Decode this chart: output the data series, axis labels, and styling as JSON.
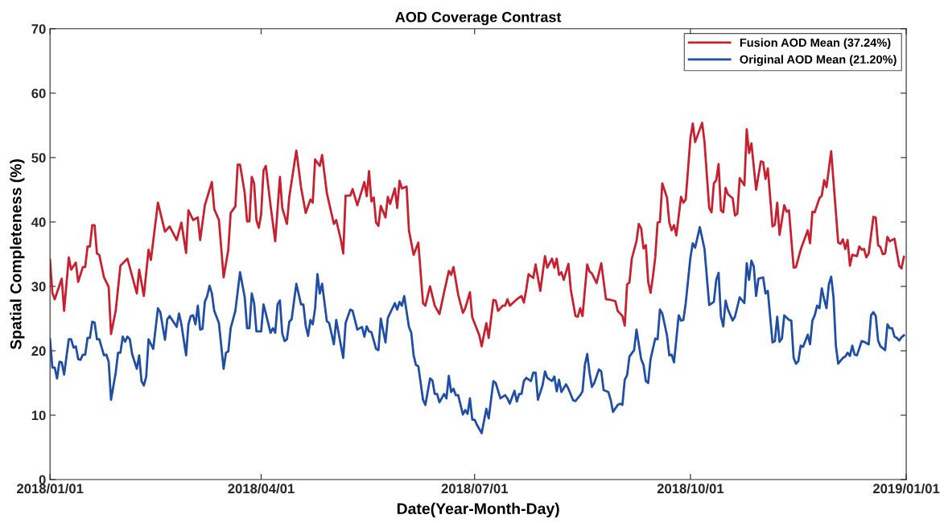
{
  "chart_data": {
    "type": "line",
    "title": "AOD Coverage Contrast",
    "xlabel": "Date(Year-Month-Day)",
    "ylabel": "Spatial Completeness (%)",
    "xlim": [
      "2018-01-01",
      "2019-01-01"
    ],
    "xticks": [
      {
        "value": "2018-01-01",
        "label": "2018/01/01"
      },
      {
        "value": "2018-04-01",
        "label": "2018/04/01"
      },
      {
        "value": "2018-07-01",
        "label": "2018/07/01"
      },
      {
        "value": "2018-10-01",
        "label": "2018/10/01"
      },
      {
        "value": "2019-01-01",
        "label": "2019/01/01"
      }
    ],
    "ylim": [
      0,
      70
    ],
    "yticks": [
      0,
      10,
      20,
      30,
      40,
      50,
      60,
      70
    ],
    "grid": false,
    "legend": "top right",
    "marker": "none",
    "line_style": "solid",
    "series": [
      {
        "name": "Fusion AOD Mean (37.24%)",
        "color": "#c8202f",
        "x": [
          "2018-01-01",
          "2018-01-02",
          "2018-01-03",
          "2018-01-06",
          "2018-01-07",
          "2018-01-09",
          "2018-01-10",
          "2018-01-12",
          "2018-01-13",
          "2018-01-15",
          "2018-01-16",
          "2018-01-17",
          "2018-01-18",
          "2018-01-19",
          "2018-01-20",
          "2018-01-21",
          "2018-01-22",
          "2018-01-24",
          "2018-01-26",
          "2018-01-27",
          "2018-01-29",
          "2018-01-31",
          "2018-02-03",
          "2018-02-07",
          "2018-02-08",
          "2018-02-10",
          "2018-02-12",
          "2018-02-13",
          "2018-02-16",
          "2018-02-19",
          "2018-02-21",
          "2018-02-24",
          "2018-02-26",
          "2018-02-28",
          "2018-03-01",
          "2018-03-03",
          "2018-03-05",
          "2018-03-06",
          "2018-03-08",
          "2018-03-11",
          "2018-03-12",
          "2018-03-14",
          "2018-03-16",
          "2018-03-18",
          "2018-03-19",
          "2018-03-21",
          "2018-03-22",
          "2018-03-23",
          "2018-03-25",
          "2018-03-26",
          "2018-03-27",
          "2018-03-28",
          "2018-03-29",
          "2018-03-30",
          "2018-03-31",
          "2018-04-01",
          "2018-04-02",
          "2018-04-03",
          "2018-04-05",
          "2018-04-07",
          "2018-04-09",
          "2018-04-10",
          "2018-04-12",
          "2018-04-13",
          "2018-04-16",
          "2018-04-18",
          "2018-04-20",
          "2018-04-22",
          "2018-04-23",
          "2018-04-24",
          "2018-04-26",
          "2018-04-27",
          "2018-04-29",
          "2018-05-02",
          "2018-05-03",
          "2018-05-05",
          "2018-05-06",
          "2018-05-07",
          "2018-05-09",
          "2018-05-10",
          "2018-05-12",
          "2018-05-15",
          "2018-05-16",
          "2018-05-17",
          "2018-05-18",
          "2018-05-19",
          "2018-05-20",
          "2018-05-21",
          "2018-05-22",
          "2018-05-24",
          "2018-05-25",
          "2018-05-26",
          "2018-05-28",
          "2018-05-29",
          "2018-05-30",
          "2018-05-31",
          "2018-06-02",
          "2018-06-03",
          "2018-06-05",
          "2018-06-07",
          "2018-06-09",
          "2018-06-10",
          "2018-06-12",
          "2018-06-14",
          "2018-06-16",
          "2018-06-18",
          "2018-06-20",
          "2018-06-21",
          "2018-06-22",
          "2018-06-24",
          "2018-06-26",
          "2018-06-27",
          "2018-06-29",
          "2018-06-30",
          "2018-07-03",
          "2018-07-04",
          "2018-07-06",
          "2018-07-07",
          "2018-07-09",
          "2018-07-10",
          "2018-07-11",
          "2018-07-13",
          "2018-07-14",
          "2018-07-15",
          "2018-07-16",
          "2018-07-19",
          "2018-07-21",
          "2018-07-22",
          "2018-07-23",
          "2018-07-24",
          "2018-07-26",
          "2018-07-27",
          "2018-07-29",
          "2018-07-31",
          "2018-08-01",
          "2018-08-03",
          "2018-08-04",
          "2018-08-05",
          "2018-08-06",
          "2018-08-07",
          "2018-08-08",
          "2018-08-10",
          "2018-08-11",
          "2018-08-13",
          "2018-08-14",
          "2018-08-15",
          "2018-08-16",
          "2018-08-18",
          "2018-08-19",
          "2018-08-20",
          "2018-08-22",
          "2018-08-24",
          "2018-08-26",
          "2018-08-28",
          "2018-08-30",
          "2018-08-31",
          "2018-09-02",
          "2018-09-03",
          "2018-09-04",
          "2018-09-05",
          "2018-09-06",
          "2018-09-08",
          "2018-09-09",
          "2018-09-10",
          "2018-09-11",
          "2018-09-12",
          "2018-09-13",
          "2018-09-14",
          "2018-09-15",
          "2018-09-16",
          "2018-09-17",
          "2018-09-18",
          "2018-09-19",
          "2018-09-21",
          "2018-09-22",
          "2018-09-23",
          "2018-09-24",
          "2018-09-25",
          "2018-09-27",
          "2018-09-28",
          "2018-09-29",
          "2018-10-01",
          "2018-10-02",
          "2018-10-03",
          "2018-10-06",
          "2018-10-07",
          "2018-10-09",
          "2018-10-10",
          "2018-10-11",
          "2018-10-12",
          "2018-10-13",
          "2018-10-14",
          "2018-10-15",
          "2018-10-16",
          "2018-10-17",
          "2018-10-19",
          "2018-10-20",
          "2018-10-21",
          "2018-10-22",
          "2018-10-24",
          "2018-10-25",
          "2018-10-26",
          "2018-10-27",
          "2018-10-29",
          "2018-10-31",
          "2018-11-01",
          "2018-11-02",
          "2018-11-03",
          "2018-11-05",
          "2018-11-06",
          "2018-11-07",
          "2018-11-08",
          "2018-11-10",
          "2018-11-11",
          "2018-11-12",
          "2018-11-14",
          "2018-11-15",
          "2018-11-17",
          "2018-11-20",
          "2018-11-21",
          "2018-11-22",
          "2018-11-23",
          "2018-11-25",
          "2018-11-26",
          "2018-11-27",
          "2018-11-28",
          "2018-11-30",
          "2018-12-03",
          "2018-12-04",
          "2018-12-05",
          "2018-12-06",
          "2018-12-07",
          "2018-12-08",
          "2018-12-09",
          "2018-12-11",
          "2018-12-12",
          "2018-12-13",
          "2018-12-14",
          "2018-12-15",
          "2018-12-16",
          "2018-12-18",
          "2018-12-19",
          "2018-12-20",
          "2018-12-21",
          "2018-12-22",
          "2018-12-23",
          "2018-12-24",
          "2018-12-25",
          "2018-12-27",
          "2018-12-29",
          "2018-12-30",
          "2018-12-31"
        ],
        "values": [
          34.1,
          29,
          28,
          31.2,
          26.2,
          34.5,
          32.6,
          33.7,
          30.7,
          33,
          33,
          36.2,
          36.2,
          39.5,
          39.5,
          35.1,
          34.9,
          31.4,
          29.9,
          22.6,
          26.2,
          33.2,
          34.3,
          28.9,
          32.6,
          28.5,
          35.7,
          34.1,
          43,
          38.5,
          39.3,
          37.2,
          39.9,
          35.2,
          41.8,
          40.3,
          40.7,
          37.2,
          42.6,
          46.2,
          42,
          40.3,
          31.4,
          35.7,
          41.4,
          42.4,
          48.9,
          48.9,
          44.5,
          40.1,
          40.1,
          47,
          46,
          40.3,
          39.1,
          41.2,
          48,
          48.7,
          42.6,
          37,
          47,
          42.2,
          39.7,
          43.9,
          51.1,
          45.4,
          41.4,
          43.5,
          43,
          49.7,
          48.7,
          50.4,
          44.5,
          39.7,
          40.3,
          37.2,
          35.1,
          44.1,
          44.1,
          45.1,
          42.6,
          46.2,
          44,
          47.9,
          43.2,
          43.8,
          39.9,
          39.4,
          42.5,
          40.7,
          43.9,
          42.8,
          45.2,
          42.2,
          46.4,
          45.2,
          45.5,
          38.7,
          34.9,
          36.8,
          27.4,
          27,
          30,
          27,
          25.7,
          29.1,
          32.4,
          31.8,
          33,
          28.7,
          25.9,
          26.6,
          29.1,
          25.2,
          22.4,
          20.7,
          24.3,
          22,
          27.9,
          27.8,
          26.2,
          27,
          27,
          28,
          27,
          28,
          28.5,
          27.5,
          29.5,
          31.9,
          31.3,
          33.4,
          29.3,
          34.7,
          32.9,
          34.3,
          32.9,
          34.3,
          31.8,
          32.2,
          31,
          33.5,
          29.5,
          25.4,
          25.3,
          26.6,
          25.4,
          33.4,
          32.3,
          32,
          30.5,
          33.6,
          28,
          27.9,
          27.7,
          26.2,
          25.4,
          23.9,
          30.3,
          30.6,
          34.3,
          37,
          39.7,
          39,
          35.9,
          36.4,
          30.7,
          29,
          31.5,
          34.5,
          39.9,
          40,
          46,
          43.8,
          39.9,
          38.7,
          39.5,
          37.9,
          43.9,
          43,
          43.5,
          53,
          55.3,
          52.4,
          55.4,
          52.4,
          42.2,
          41.5,
          46,
          46.5,
          49,
          41.8,
          41.5,
          45.3,
          44.3,
          43.7,
          41,
          41.3,
          46.8,
          45.7,
          54.4,
          50.7,
          52.2,
          45,
          49.4,
          49.3,
          46.7,
          48.3,
          39.3,
          39.6,
          43,
          38,
          42.6,
          41.6,
          41.8,
          32.9,
          33,
          35.7,
          38.7,
          36.7,
          41.6,
          41.5,
          43.7,
          44.1,
          46.5,
          45.4,
          51,
          36.8,
          36.6,
          37.3,
          35.8,
          37.2,
          33.2,
          34.9,
          34.7,
          36.2,
          35.7,
          35.8,
          34.5,
          35.1,
          40.8,
          40.7,
          36.4,
          36.1,
          35,
          35.1,
          37.7,
          37,
          37.4,
          33.2,
          32.8,
          34.6
        ]
      },
      {
        "name": "Original AOD Mean (21.20%)",
        "color": "#1f4ea6",
        "x": [
          "2018-01-01",
          "2018-01-02",
          "2018-01-03",
          "2018-01-04",
          "2018-01-05",
          "2018-01-06",
          "2018-01-07",
          "2018-01-09",
          "2018-01-10",
          "2018-01-11",
          "2018-01-12",
          "2018-01-13",
          "2018-01-14",
          "2018-01-15",
          "2018-01-16",
          "2018-01-17",
          "2018-01-18",
          "2018-01-19",
          "2018-01-20",
          "2018-01-21",
          "2018-01-22",
          "2018-01-24",
          "2018-01-25",
          "2018-01-26",
          "2018-01-27",
          "2018-01-29",
          "2018-01-30",
          "2018-01-31",
          "2018-02-01",
          "2018-02-02",
          "2018-02-03",
          "2018-02-04",
          "2018-02-05",
          "2018-02-07",
          "2018-02-08",
          "2018-02-09",
          "2018-02-10",
          "2018-02-11",
          "2018-02-12",
          "2018-02-14",
          "2018-02-16",
          "2018-02-17",
          "2018-02-19",
          "2018-02-20",
          "2018-02-21",
          "2018-02-24",
          "2018-02-25",
          "2018-02-26",
          "2018-02-28",
          "2018-03-01",
          "2018-03-02",
          "2018-03-03",
          "2018-03-04",
          "2018-03-05",
          "2018-03-06",
          "2018-03-07",
          "2018-03-08",
          "2018-03-09",
          "2018-03-10",
          "2018-03-11",
          "2018-03-12",
          "2018-03-14",
          "2018-03-16",
          "2018-03-17",
          "2018-03-18",
          "2018-03-19",
          "2018-03-21",
          "2018-03-23",
          "2018-03-25",
          "2018-03-26",
          "2018-03-27",
          "2018-03-28",
          "2018-03-29",
          "2018-03-30",
          "2018-04-01",
          "2018-04-02",
          "2018-04-03",
          "2018-04-05",
          "2018-04-06",
          "2018-04-07",
          "2018-04-08",
          "2018-04-09",
          "2018-04-10",
          "2018-04-11",
          "2018-04-12",
          "2018-04-13",
          "2018-04-14",
          "2018-04-16",
          "2018-04-18",
          "2018-04-19",
          "2018-04-20",
          "2018-04-21",
          "2018-04-22",
          "2018-04-23",
          "2018-04-24",
          "2018-04-25",
          "2018-04-26",
          "2018-04-27",
          "2018-04-29",
          "2018-04-30",
          "2018-05-02",
          "2018-05-03",
          "2018-05-05",
          "2018-05-06",
          "2018-05-07",
          "2018-05-09",
          "2018-05-10",
          "2018-05-12",
          "2018-05-14",
          "2018-05-15",
          "2018-05-16",
          "2018-05-17",
          "2018-05-18",
          "2018-05-20",
          "2018-05-21",
          "2018-05-22",
          "2018-05-24",
          "2018-05-25",
          "2018-05-28",
          "2018-05-29",
          "2018-05-30",
          "2018-05-31",
          "2018-06-01",
          "2018-06-03",
          "2018-06-04",
          "2018-06-05",
          "2018-06-06",
          "2018-06-07",
          "2018-06-09",
          "2018-06-10",
          "2018-06-12",
          "2018-06-13",
          "2018-06-14",
          "2018-06-15",
          "2018-06-16",
          "2018-06-18",
          "2018-06-19",
          "2018-06-20",
          "2018-06-21",
          "2018-06-22",
          "2018-06-23",
          "2018-06-24",
          "2018-06-26",
          "2018-06-27",
          "2018-06-28",
          "2018-06-29",
          "2018-06-30",
          "2018-07-01",
          "2018-07-02",
          "2018-07-04",
          "2018-07-06",
          "2018-07-07",
          "2018-07-09",
          "2018-07-10",
          "2018-07-12",
          "2018-07-14",
          "2018-07-15",
          "2018-07-16",
          "2018-07-18",
          "2018-07-19",
          "2018-07-20",
          "2018-07-21",
          "2018-07-22",
          "2018-07-23",
          "2018-07-25",
          "2018-07-26",
          "2018-07-27",
          "2018-07-28",
          "2018-07-30",
          "2018-07-31",
          "2018-08-01",
          "2018-08-03",
          "2018-08-04",
          "2018-08-05",
          "2018-08-06",
          "2018-08-07",
          "2018-08-09",
          "2018-08-10",
          "2018-08-12",
          "2018-08-13",
          "2018-08-15",
          "2018-08-16",
          "2018-08-17",
          "2018-08-18",
          "2018-08-19",
          "2018-08-20",
          "2018-08-21",
          "2018-08-23",
          "2018-08-24",
          "2018-08-25",
          "2018-08-27",
          "2018-08-28",
          "2018-08-29",
          "2018-08-31",
          "2018-09-01",
          "2018-09-02",
          "2018-09-03",
          "2018-09-04",
          "2018-09-05",
          "2018-09-07",
          "2018-09-08",
          "2018-09-10",
          "2018-09-11",
          "2018-09-12",
          "2018-09-13",
          "2018-09-14",
          "2018-09-16",
          "2018-09-17",
          "2018-09-18",
          "2018-09-19",
          "2018-09-21",
          "2018-09-22",
          "2018-09-23",
          "2018-09-24",
          "2018-09-26",
          "2018-09-27",
          "2018-09-28",
          "2018-09-29",
          "2018-10-01",
          "2018-10-02",
          "2018-10-03",
          "2018-10-05",
          "2018-10-07",
          "2018-10-09",
          "2018-10-11",
          "2018-10-12",
          "2018-10-13",
          "2018-10-14",
          "2018-10-15",
          "2018-10-16",
          "2018-10-17",
          "2018-10-19",
          "2018-10-20",
          "2018-10-22",
          "2018-10-24",
          "2018-10-25",
          "2018-10-26",
          "2018-10-27",
          "2018-10-28",
          "2018-10-29",
          "2018-10-30",
          "2018-11-01",
          "2018-11-02",
          "2018-11-03",
          "2018-11-05",
          "2018-11-06",
          "2018-11-07",
          "2018-11-08",
          "2018-11-09",
          "2018-11-10",
          "2018-11-12",
          "2018-11-13",
          "2018-11-14",
          "2018-11-15",
          "2018-11-16",
          "2018-11-17",
          "2018-11-18",
          "2018-11-20",
          "2018-11-21",
          "2018-11-22",
          "2018-11-23",
          "2018-11-24",
          "2018-11-25",
          "2018-11-26",
          "2018-11-27",
          "2018-11-28",
          "2018-11-29",
          "2018-11-30",
          "2018-12-01",
          "2018-12-02",
          "2018-12-03",
          "2018-12-05",
          "2018-12-06",
          "2018-12-07",
          "2018-12-08",
          "2018-12-09",
          "2018-12-10",
          "2018-12-11",
          "2018-12-13",
          "2018-12-14",
          "2018-12-16",
          "2018-12-17",
          "2018-12-18",
          "2018-12-19",
          "2018-12-20",
          "2018-12-21",
          "2018-12-23",
          "2018-12-24",
          "2018-12-25",
          "2018-12-26",
          "2018-12-27",
          "2018-12-28",
          "2018-12-29",
          "2018-12-30",
          "2018-12-31"
        ],
        "values": [
          21.8,
          17.4,
          17.4,
          15.7,
          18.3,
          18.2,
          16.3,
          21.8,
          21.8,
          20.5,
          20.7,
          18.7,
          18.6,
          19.4,
          19.4,
          22,
          22,
          24.5,
          24.4,
          21.8,
          21.8,
          19.3,
          19.4,
          18.3,
          12.4,
          16.6,
          19.7,
          19.7,
          22.2,
          21.4,
          22.2,
          21.8,
          19.5,
          17.2,
          19.3,
          15.3,
          14.6,
          16,
          21.8,
          20.3,
          26.6,
          26,
          21.7,
          24.9,
          25.4,
          23.7,
          25.8,
          24.1,
          19.3,
          24.1,
          25.4,
          25.5,
          24.1,
          27,
          23.3,
          23.4,
          27.6,
          28.5,
          30.1,
          28.9,
          26.2,
          24.3,
          17.2,
          19.7,
          19.9,
          23.5,
          26.2,
          32.2,
          28.3,
          23.5,
          23.5,
          28.9,
          27.4,
          23,
          23,
          27.2,
          25.8,
          22.8,
          23.5,
          22.8,
          27.2,
          27.8,
          22.7,
          21.5,
          21.8,
          24.5,
          24.9,
          30.4,
          27.2,
          27.2,
          23.9,
          22.3,
          24.8,
          24.1,
          26.6,
          31.9,
          28.9,
          30.4,
          24.6,
          24.3,
          21,
          24.8,
          20.8,
          18.9,
          24.3,
          26.4,
          26.2,
          23.3,
          23.7,
          22.2,
          23.8,
          23,
          22.9,
          20.3,
          20.1,
          25,
          21.3,
          25.1,
          27.4,
          26.4,
          27.6,
          27,
          28.5,
          23.7,
          22.8,
          19.3,
          17.8,
          17.6,
          12.4,
          11.6,
          15.7,
          15.4,
          13.3,
          13.3,
          12,
          13.3,
          12.6,
          16.1,
          13.6,
          14.1,
          13.1,
          13.1,
          10.1,
          10.8,
          10.2,
          12.6,
          9.3,
          9.3,
          8.5,
          7.2,
          11,
          9.5,
          15.3,
          15,
          12.6,
          13.1,
          12.6,
          11.8,
          13.8,
          12.1,
          13.3,
          13.3,
          15.3,
          15.8,
          15.3,
          16.6,
          16.6,
          12.4,
          14.7,
          16.8,
          15.8,
          15.3,
          16,
          13.7,
          15.5,
          13.6,
          14.8,
          14.1,
          12.3,
          12.2,
          13.1,
          13.7,
          17.8,
          19.5,
          16.6,
          14.4,
          15,
          17.1,
          16.8,
          13.9,
          13.6,
          12.4,
          10.5,
          11.6,
          11.8,
          11.6,
          15.5,
          16.2,
          19.1,
          20.1,
          23.3,
          18.7,
          17.8,
          15.3,
          15,
          18.7,
          21.9,
          21.8,
          26.4,
          25.8,
          22.4,
          19.3,
          19.4,
          18.2,
          25.5,
          24.7,
          24.8,
          27.4,
          34.5,
          36.7,
          36,
          39.2,
          35.8,
          27.1,
          27.6,
          31,
          32.1,
          25.3,
          23.8,
          27.8,
          26.4,
          24.7,
          25.3,
          28.3,
          27.4,
          33.6,
          31,
          34,
          33.1,
          28.5,
          31.2,
          31.4,
          28.9,
          29.3,
          21.3,
          21.5,
          25.3,
          21.4,
          21.9,
          25.5,
          24.8,
          24.7,
          18.9,
          18,
          18.4,
          20.8,
          20.6,
          22.5,
          21,
          24.7,
          25.5,
          27,
          26.6,
          29.7,
          28,
          26.6,
          30.3,
          31.5,
          28.3,
          20.8,
          18,
          18.9,
          19.1,
          19.7,
          19.2,
          20.8,
          19.4,
          19.3,
          21.5,
          21.4,
          21,
          25.5,
          26,
          25.4,
          21.6,
          20.7,
          20.1,
          24.1,
          23.5,
          23.5,
          22.2,
          22,
          21.6,
          22.1,
          22.4
        ]
      }
    ]
  }
}
